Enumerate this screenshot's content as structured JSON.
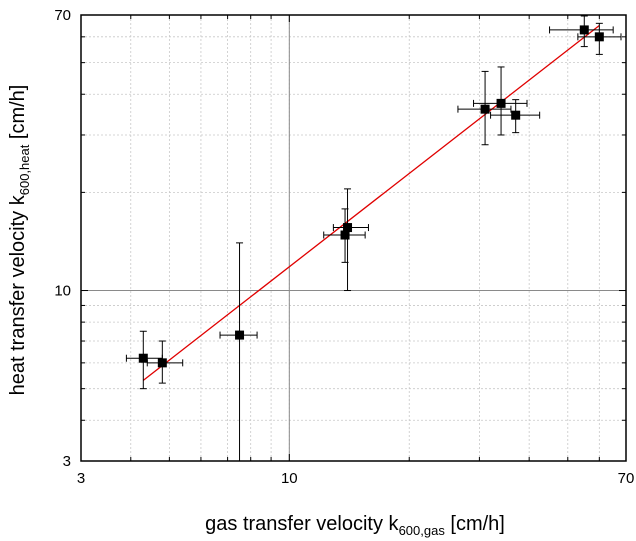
{
  "chart_data": {
    "type": "scatter",
    "x_scale": "log",
    "y_scale": "log",
    "xlim": [
      3,
      70
    ],
    "ylim": [
      3,
      70
    ],
    "x_ticks": [
      {
        "value": 3,
        "label": "3"
      },
      {
        "value": 10,
        "label": "10"
      },
      {
        "value": 70,
        "label": "70"
      }
    ],
    "y_ticks": [
      {
        "value": 3,
        "label": "3"
      },
      {
        "value": 10,
        "label": "10"
      },
      {
        "value": 70,
        "label": "70"
      }
    ],
    "xlabel": {
      "main": "gas transfer velocity k",
      "sub": "600,gas",
      "unit": " [cm/h]"
    },
    "ylabel": {
      "main": "heat transfer velocity k",
      "sub": "600,heat",
      "unit": " [cm/h]"
    },
    "grid": true,
    "reference_lines": {
      "x": 10,
      "y": 10
    },
    "points": [
      {
        "x": 4.3,
        "y": 6.2,
        "xerr": [
          3.9,
          4.8
        ],
        "yerr": [
          5.0,
          7.5
        ]
      },
      {
        "x": 4.8,
        "y": 6.0,
        "xerr": [
          4.4,
          5.4
        ],
        "yerr": [
          5.2,
          7.0
        ]
      },
      {
        "x": 7.5,
        "y": 7.3,
        "xerr": [
          6.7,
          8.3
        ],
        "yerr": [
          3.0,
          14.0
        ]
      },
      {
        "x": 13.8,
        "y": 14.8,
        "xerr": [
          12.2,
          15.5
        ],
        "yerr": [
          12.2,
          17.8
        ]
      },
      {
        "x": 14.0,
        "y": 15.6,
        "xerr": [
          12.9,
          15.8
        ],
        "yerr": [
          10.0,
          20.5
        ]
      },
      {
        "x": 31.0,
        "y": 36.0,
        "xerr": [
          26.5,
          36.0
        ],
        "yerr": [
          28.0,
          47.0
        ]
      },
      {
        "x": 34.0,
        "y": 37.5,
        "xerr": [
          29.0,
          39.5
        ],
        "yerr": [
          30.0,
          48.5
        ]
      },
      {
        "x": 37.0,
        "y": 34.5,
        "xerr": [
          32.0,
          42.5
        ],
        "yerr": [
          30.5,
          38.5
        ]
      },
      {
        "x": 55.0,
        "y": 63.0,
        "xerr": [
          45.0,
          65.0
        ],
        "yerr": [
          56.0,
          69.5
        ]
      },
      {
        "x": 60.0,
        "y": 60.0,
        "xerr": [
          53.0,
          68.0
        ],
        "yerr": [
          53.0,
          66.0
        ]
      }
    ],
    "fit_line": {
      "from": [
        4.3,
        5.3
      ],
      "to": [
        60.0,
        65.0
      ],
      "color": "#e00000"
    },
    "marker_color": "#000000"
  }
}
